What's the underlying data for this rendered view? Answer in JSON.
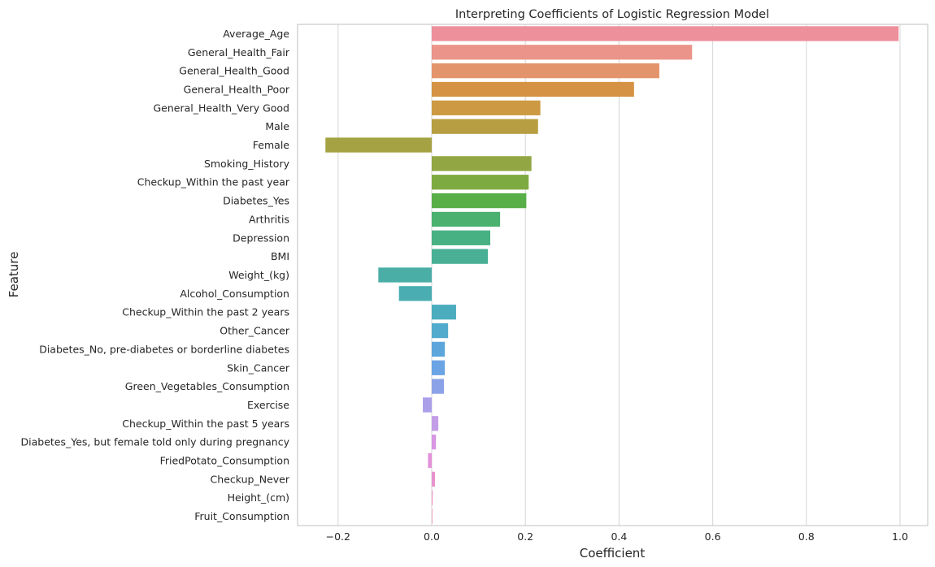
{
  "chart_data": {
    "type": "bar",
    "orientation": "horizontal",
    "title": "Interpreting Coefficients of Logistic Regression Model",
    "xlabel": "Coefficient",
    "ylabel": "Feature",
    "xlim": [
      -0.29,
      1.05
    ],
    "xticks": [
      -0.2,
      0.0,
      0.2,
      0.4,
      0.6,
      0.8,
      1.0
    ],
    "xtick_labels": [
      "−0.2",
      "0.0",
      "0.2",
      "0.4",
      "0.6",
      "0.8",
      "1.0"
    ],
    "grid": "vertical",
    "bars": [
      {
        "label": "Average_Age",
        "value": 0.997,
        "color": "#ee8f9c"
      },
      {
        "label": "General_Health_Fair",
        "value": 0.556,
        "color": "#eb9489"
      },
      {
        "label": "General_Health_Good",
        "value": 0.486,
        "color": "#e4946a"
      },
      {
        "label": "General_Health_Poor",
        "value": 0.432,
        "color": "#d69244"
      },
      {
        "label": "General_Health_Very Good",
        "value": 0.232,
        "color": "#cd9a43"
      },
      {
        "label": "Male",
        "value": 0.227,
        "color": "#b89e42"
      },
      {
        "label": "Female",
        "value": -0.227,
        "color": "#a5a244"
      },
      {
        "label": "Smoking_History",
        "value": 0.213,
        "color": "#92a643"
      },
      {
        "label": "Checkup_Within the past year",
        "value": 0.207,
        "color": "#7dab42"
      },
      {
        "label": "Diabetes_Yes",
        "value": 0.202,
        "color": "#58ae47"
      },
      {
        "label": "Arthritis",
        "value": 0.146,
        "color": "#4ab16f"
      },
      {
        "label": "Depression",
        "value": 0.125,
        "color": "#48b183"
      },
      {
        "label": "BMI",
        "value": 0.12,
        "color": "#49b096"
      },
      {
        "label": "Weight_(kg)",
        "value": -0.114,
        "color": "#4aaea6"
      },
      {
        "label": "Alcohol_Consumption",
        "value": -0.07,
        "color": "#4aadb1"
      },
      {
        "label": "Checkup_Within the past 2 years",
        "value": 0.052,
        "color": "#4bacbe"
      },
      {
        "label": "Other_Cancer",
        "value": 0.035,
        "color": "#52aacd"
      },
      {
        "label": "Diabetes_No, pre-diabetes or borderline diabetes",
        "value": 0.028,
        "color": "#5da6dc"
      },
      {
        "label": "Skin_Cancer",
        "value": 0.028,
        "color": "#6aa4e5"
      },
      {
        "label": "Green_Vegetables_Consumption",
        "value": 0.026,
        "color": "#8ca2e8"
      },
      {
        "label": "Exercise",
        "value": -0.019,
        "color": "#ab9fea"
      },
      {
        "label": "Checkup_Within the past 5 years",
        "value": 0.014,
        "color": "#c49de8"
      },
      {
        "label": "Diabetes_Yes, but female told only during pregnancy",
        "value": 0.009,
        "color": "#d896e3"
      },
      {
        "label": "FriedPotato_Consumption",
        "value": -0.008,
        "color": "#e392da"
      },
      {
        "label": "Checkup_Never",
        "value": 0.007,
        "color": "#e893cf"
      },
      {
        "label": "Height_(cm)",
        "value": 0.002,
        "color": "#ec93c1"
      },
      {
        "label": "Fruit_Consumption",
        "value": 0.001,
        "color": "#ed92b3"
      }
    ]
  }
}
